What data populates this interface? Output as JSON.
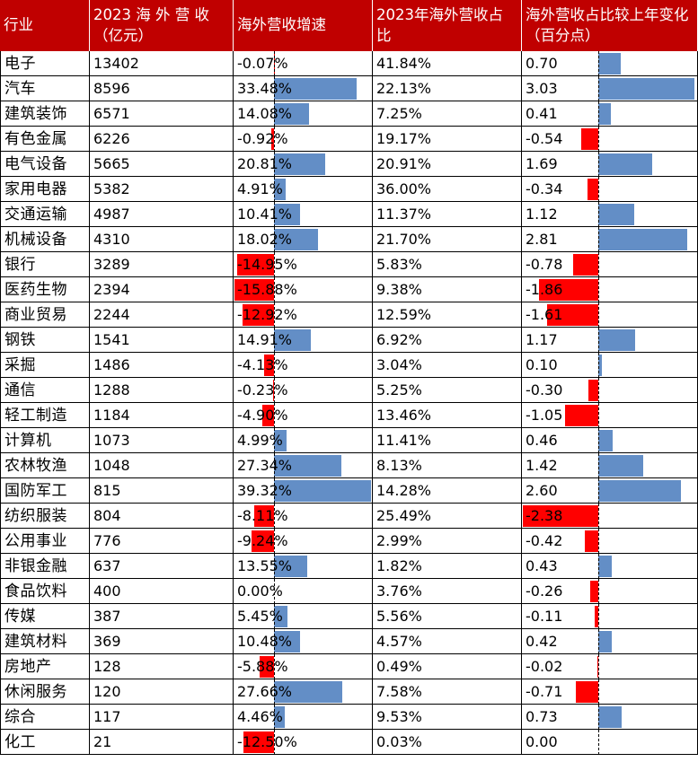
{
  "colors": {
    "header_bg": "#c00000",
    "header_text": "#ffffff",
    "positive_bar": "#638ec6",
    "negative_bar": "#ff0000"
  },
  "headers": [
    "行业",
    "2023 海 外 营 收（亿元）",
    "海外营收增速",
    "2023年海外营收占比",
    "海外营收占比较上年变化（百分点）"
  ],
  "rows": [
    {
      "industry": "电子",
      "revenue": "13402",
      "growth": "-0.07%",
      "share": "41.84%",
      "change": "0.70"
    },
    {
      "industry": "汽车",
      "revenue": "8596",
      "growth": "33.48%",
      "share": "22.13%",
      "change": "3.03"
    },
    {
      "industry": "建筑装饰",
      "revenue": "6571",
      "growth": "14.08%",
      "share": "7.25%",
      "change": "0.41"
    },
    {
      "industry": "有色金属",
      "revenue": "6226",
      "growth": "-0.92%",
      "share": "19.17%",
      "change": "-0.54"
    },
    {
      "industry": "电气设备",
      "revenue": "5665",
      "growth": "20.81%",
      "share": "20.91%",
      "change": "1.69"
    },
    {
      "industry": "家用电器",
      "revenue": "5382",
      "growth": "4.91%",
      "share": "36.00%",
      "change": "-0.34"
    },
    {
      "industry": "交通运输",
      "revenue": "4987",
      "growth": "10.41%",
      "share": "11.37%",
      "change": "1.12"
    },
    {
      "industry": "机械设备",
      "revenue": "4310",
      "growth": "18.02%",
      "share": "21.70%",
      "change": "2.81"
    },
    {
      "industry": "银行",
      "revenue": "3289",
      "growth": "-14.95%",
      "share": "5.83%",
      "change": "-0.78"
    },
    {
      "industry": "医药生物",
      "revenue": "2394",
      "growth": "-15.88%",
      "share": "9.38%",
      "change": "-1.86"
    },
    {
      "industry": "商业贸易",
      "revenue": "2244",
      "growth": "-12.92%",
      "share": "12.59%",
      "change": "-1.61"
    },
    {
      "industry": "钢铁",
      "revenue": "1541",
      "growth": "14.91%",
      "share": "6.92%",
      "change": "1.17"
    },
    {
      "industry": "采掘",
      "revenue": "1486",
      "growth": "-4.13%",
      "share": "3.04%",
      "change": "0.10"
    },
    {
      "industry": "通信",
      "revenue": "1288",
      "growth": "-0.23%",
      "share": "5.25%",
      "change": "-0.30"
    },
    {
      "industry": "轻工制造",
      "revenue": "1184",
      "growth": "-4.90%",
      "share": "13.46%",
      "change": "-1.05"
    },
    {
      "industry": "计算机",
      "revenue": "1073",
      "growth": "4.99%",
      "share": "11.41%",
      "change": "0.46"
    },
    {
      "industry": "农林牧渔",
      "revenue": "1048",
      "growth": "27.34%",
      "share": "8.13%",
      "change": "1.42"
    },
    {
      "industry": "国防军工",
      "revenue": "815",
      "growth": "39.32%",
      "share": "14.28%",
      "change": "2.60"
    },
    {
      "industry": "纺织服装",
      "revenue": "804",
      "growth": "-8.11%",
      "share": "25.49%",
      "change": "-2.38"
    },
    {
      "industry": "公用事业",
      "revenue": "776",
      "growth": "-9.24%",
      "share": "2.99%",
      "change": "-0.42"
    },
    {
      "industry": "非银金融",
      "revenue": "637",
      "growth": "13.55%",
      "share": "1.82%",
      "change": "0.43"
    },
    {
      "industry": "食品饮料",
      "revenue": "400",
      "growth": "0.00%",
      "share": "3.76%",
      "change": "-0.26"
    },
    {
      "industry": "传媒",
      "revenue": "387",
      "growth": "5.45%",
      "share": "5.56%",
      "change": "-0.11"
    },
    {
      "industry": "建筑材料",
      "revenue": "369",
      "growth": "10.48%",
      "share": "4.57%",
      "change": "0.42"
    },
    {
      "industry": "房地产",
      "revenue": "128",
      "growth": "-5.88%",
      "share": "0.49%",
      "change": "-0.02"
    },
    {
      "industry": "休闲服务",
      "revenue": "120",
      "growth": "27.66%",
      "share": "7.58%",
      "change": "-0.71"
    },
    {
      "industry": "综合",
      "revenue": "117",
      "growth": "4.46%",
      "share": "9.53%",
      "change": "0.73"
    },
    {
      "industry": "化工",
      "revenue": "21",
      "growth": "-12.50%",
      "share": "0.03%",
      "change": "0.00"
    }
  ]
}
